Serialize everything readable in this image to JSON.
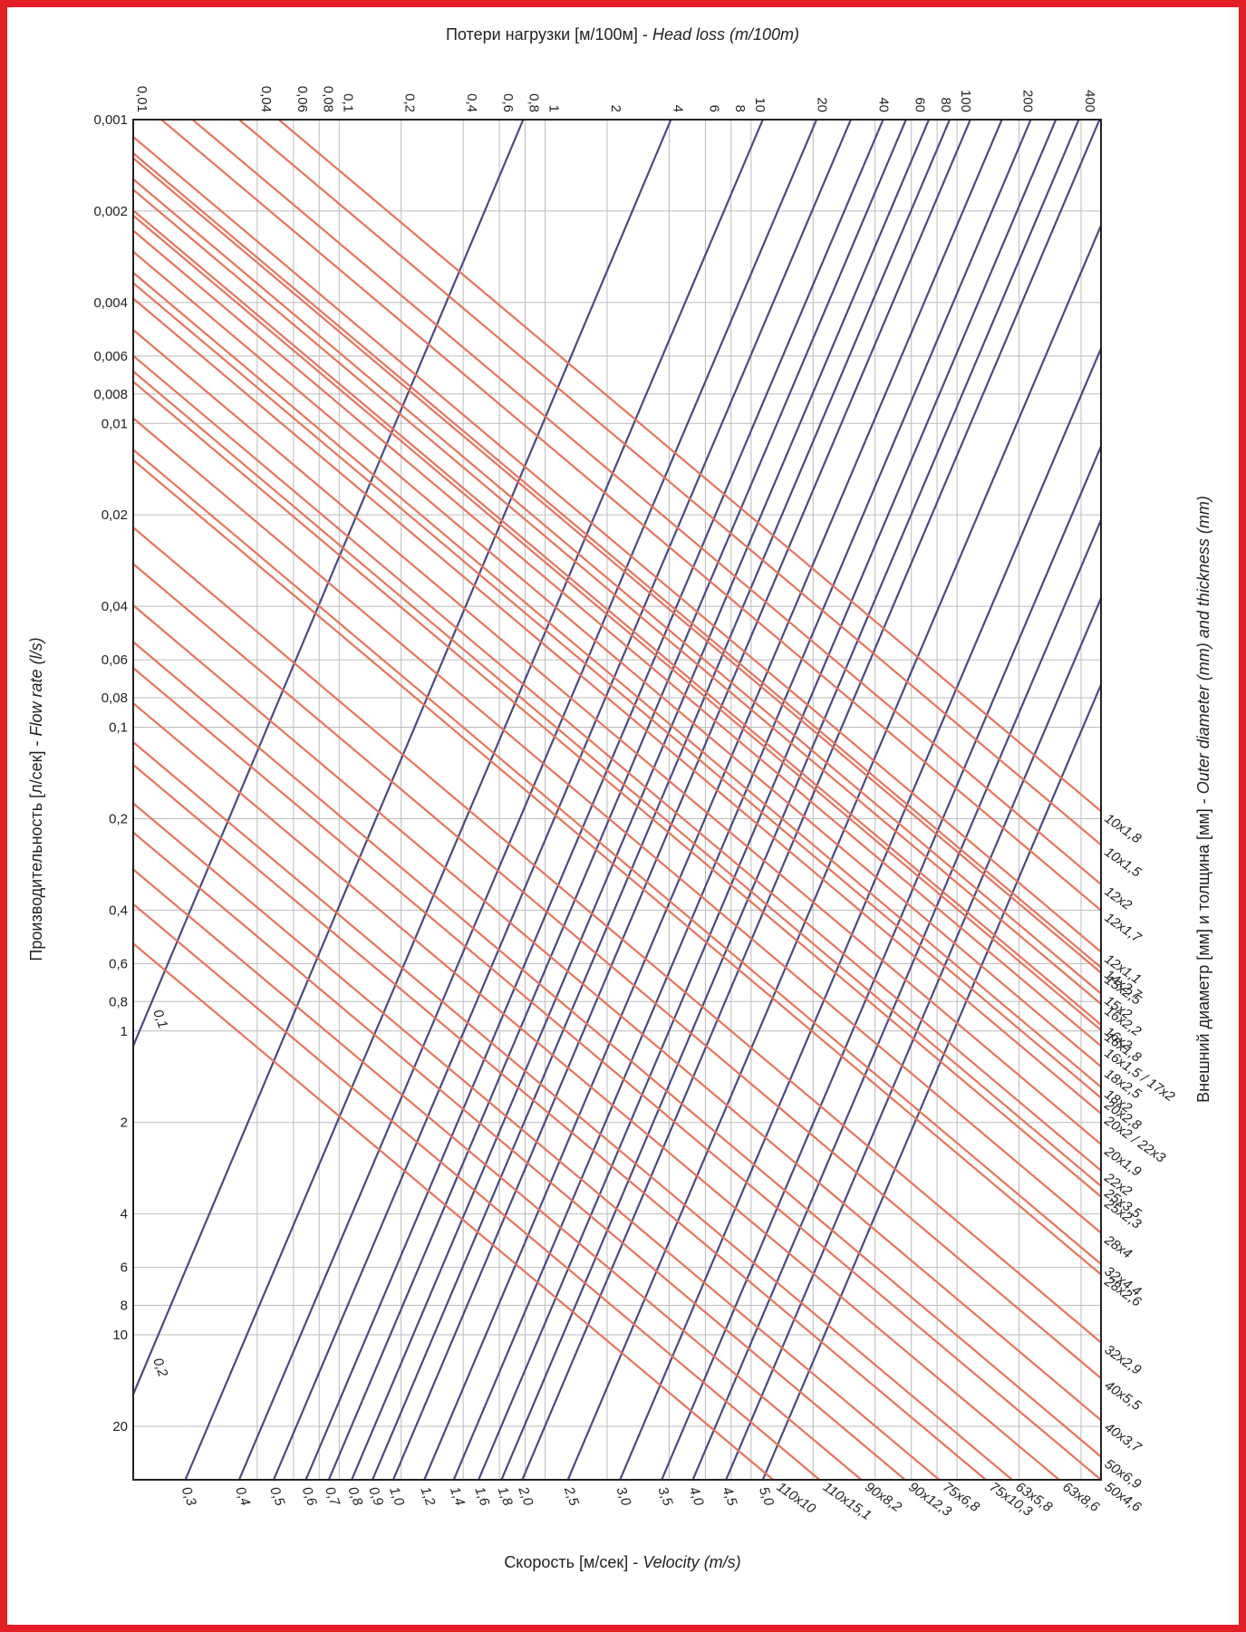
{
  "chart_data": {
    "type": "nomogram",
    "top_label": {
      "ru": "Потери нагрузки [м/100м] -",
      "en": "Head loss (m/100m)"
    },
    "left_label": {
      "ru": "Производительность [л/сек] -",
      "en": "Flow rate (l/s)"
    },
    "bottom_label": {
      "ru": "Скорость [м/сек] -",
      "en": "Velocity (m/s)"
    },
    "right_label": {
      "ru": "Внешний диаметр [мм] и толщина [мм] -",
      "en": "Outer diameter (mm) and thickness (mm)"
    },
    "xlim": [
      0.01,
      500
    ],
    "ylim": [
      0.001,
      30
    ],
    "xlog": true,
    "ylog": true,
    "y_reversed": true,
    "grid": true,
    "xticks": [
      {
        "value": 0.01,
        "label": "0,01"
      },
      {
        "value": 0.04,
        "label": "0,04"
      },
      {
        "value": 0.06,
        "label": "0,06"
      },
      {
        "value": 0.08,
        "label": "0,08"
      },
      {
        "value": 0.1,
        "label": "0,1"
      },
      {
        "value": 0.2,
        "label": "0,2"
      },
      {
        "value": 0.4,
        "label": "0,4"
      },
      {
        "value": 0.6,
        "label": "0,6"
      },
      {
        "value": 0.8,
        "label": "0,8"
      },
      1,
      2,
      4,
      6,
      8,
      10,
      20,
      40,
      60,
      80,
      100,
      200,
      400
    ],
    "yticks": [
      {
        "value": 0.001,
        "label": "0,001"
      },
      {
        "value": 0.002,
        "label": "0,002"
      },
      {
        "value": 0.004,
        "label": "0,004"
      },
      {
        "value": 0.006,
        "label": "0,006"
      },
      {
        "value": 0.008,
        "label": "0,008"
      },
      {
        "value": 0.01,
        "label": "0,01"
      },
      {
        "value": 0.02,
        "label": "0,02"
      },
      {
        "value": 0.04,
        "label": "0,04"
      },
      {
        "value": 0.06,
        "label": "0,06"
      },
      {
        "value": 0.08,
        "label": "0,08"
      },
      {
        "value": 0.1,
        "label": "0,1"
      },
      {
        "value": 0.2,
        "label": "0,2"
      },
      {
        "value": 0.4,
        "label": "0,4"
      },
      {
        "value": 0.6,
        "label": "0,6"
      },
      {
        "value": 0.8,
        "label": "0,8"
      },
      1,
      2,
      4,
      6,
      8,
      10,
      20
    ],
    "velocity_color": "#4b4a82",
    "velocity_lines": [
      {
        "label": "0,1",
        "x": [
          0.01,
          0.783
        ],
        "y": [
          1.12,
          0.001
        ]
      },
      {
        "label": "0,2",
        "x": [
          0.01,
          4.08
        ],
        "y": [
          15.7,
          0.001
        ]
      },
      {
        "label": "0,3",
        "x": [
          0.0179,
          11.4
        ],
        "y": [
          30,
          0.001
        ]
      },
      {
        "label": "0,4",
        "x": [
          0.0327,
          20.8
        ],
        "y": [
          30,
          0.001
        ]
      },
      {
        "label": "0,5",
        "x": [
          0.0481,
          30.5
        ],
        "y": [
          30,
          0.001
        ]
      },
      {
        "label": "0,6",
        "x": [
          0.0689,
          43.8
        ],
        "y": [
          30,
          0.001
        ]
      },
      {
        "label": "0,7",
        "x": [
          0.089,
          56.5
        ],
        "y": [
          30,
          0.001
        ]
      },
      {
        "label": "0,8",
        "x": [
          0.115,
          73
        ],
        "y": [
          30,
          0.001
        ]
      },
      {
        "label": "0,9",
        "x": [
          0.145,
          92.1
        ],
        "y": [
          30,
          0.001
        ]
      },
      {
        "label": "1,0",
        "x": [
          0.183,
          116
        ],
        "y": [
          30,
          0.001
        ]
      },
      {
        "label": "1,2",
        "x": [
          0.259,
          165
        ],
        "y": [
          30,
          0.001
        ]
      },
      {
        "label": "1,4",
        "x": [
          0.36,
          228
        ],
        "y": [
          30,
          0.001
        ]
      },
      {
        "label": "1,6",
        "x": [
          0.475,
          302
        ],
        "y": [
          30,
          0.001
        ]
      },
      {
        "label": "1,8",
        "x": [
          0.614,
          390
        ],
        "y": [
          30,
          0.001
        ]
      },
      {
        "label": "2,0",
        "x": [
          0.774,
          492
        ],
        "y": [
          30,
          0.001
        ]
      },
      {
        "label": "2,5",
        "x": [
          1.29,
          500
        ],
        "y": [
          30,
          0.00223
        ]
      },
      {
        "label": "3,0",
        "x": [
          2.31,
          500
        ],
        "y": [
          30,
          0.00567
        ]
      },
      {
        "label": "3,5",
        "x": [
          3.68,
          500
        ],
        "y": [
          30,
          0.0119
        ]
      },
      {
        "label": "4,0",
        "x": [
          5.21,
          500
        ],
        "y": [
          30,
          0.0208
        ]
      },
      {
        "label": "4,5",
        "x": [
          7.56,
          500
        ],
        "y": [
          30,
          0.0376
        ]
      },
      {
        "label": "5,0",
        "x": [
          11.4,
          500
        ],
        "y": [
          30,
          0.0724
        ]
      }
    ],
    "pipe_color": "#e8735a",
    "pipe_lines": [
      {
        "label": "10x1,8",
        "x": [
          0.0509,
          500
        ],
        "y": [
          0.001,
          0.189
        ]
      },
      {
        "label": "10x1,5",
        "x": [
          0.0327,
          500
        ],
        "y": [
          0.001,
          0.244
        ]
      },
      {
        "label": "12x2",
        "x": [
          0.0194,
          500
        ],
        "y": [
          0.001,
          0.329
        ]
      },
      {
        "label": "12x1,7",
        "x": [
          0.0137,
          500
        ],
        "y": [
          0.001,
          0.401
        ]
      },
      {
        "label": "12x1,1",
        "x": [
          0.01,
          500
        ],
        "y": [
          0.00114,
          0.549
        ]
      },
      {
        "label": "14x2,7",
        "x": [
          0.01,
          500
        ],
        "y": [
          0.00129,
          0.618
        ]
      },
      {
        "label": "15x2,5",
        "x": [
          0.01,
          500
        ],
        "y": [
          0.00134,
          0.643
        ]
      },
      {
        "label": "15x2",
        "x": [
          0.01,
          500
        ],
        "y": [
          0.00157,
          0.753
        ]
      },
      {
        "label": "16x2,2",
        "x": [
          0.01,
          500
        ],
        "y": [
          0.0017,
          0.815
        ]
      },
      {
        "label": "16x2",
        "x": [
          0.01,
          500
        ],
        "y": [
          0.00199,
          0.953
        ]
      },
      {
        "label": "16x1,8",
        "x": [
          0.01,
          500
        ],
        "y": [
          0.00207,
          0.993
        ]
      },
      {
        "label": "16x1,5 / 17x2",
        "x": [
          0.01,
          500
        ],
        "y": [
          0.00232,
          1.12
        ]
      },
      {
        "label": "18x2,5",
        "x": [
          0.01,
          500
        ],
        "y": [
          0.00272,
          1.31
        ]
      },
      {
        "label": "18x2",
        "x": [
          0.01,
          500
        ],
        "y": [
          0.00319,
          1.53
        ]
      },
      {
        "label": "20x2,8",
        "x": [
          0.01,
          500
        ],
        "y": [
          0.00345,
          1.66
        ]
      },
      {
        "label": "20x2 / 22x3",
        "x": [
          0.01,
          500
        ],
        "y": [
          0.00388,
          1.87
        ]
      },
      {
        "label": "20x1,9",
        "x": [
          0.01,
          500
        ],
        "y": [
          0.00492,
          2.36
        ]
      },
      {
        "label": "22x2",
        "x": [
          0.01,
          500
        ],
        "y": [
          0.00599,
          2.88
        ]
      },
      {
        "label": "25x3,5",
        "x": [
          0.01,
          500
        ],
        "y": [
          0.00674,
          3.24
        ]
      },
      {
        "label": "25x2,3",
        "x": [
          0.01,
          500
        ],
        "y": [
          0.00729,
          3.51
        ]
      },
      {
        "label": "28x4",
        "x": [
          0.01,
          500
        ],
        "y": [
          0.00961,
          4.62
        ]
      },
      {
        "label": "32x4,4",
        "x": [
          0.01,
          500
        ],
        "y": [
          0.0122,
          5.85
        ]
      },
      {
        "label": "28x2,6",
        "x": [
          0.01,
          500
        ],
        "y": [
          0.0132,
          6.33
        ]
      },
      {
        "label": "32x2,9",
        "x": [
          0.01,
          500
        ],
        "y": [
          0.022,
          10.6
        ]
      },
      {
        "label": "40x5,5",
        "x": [
          0.01,
          500
        ],
        "y": [
          0.029,
          13.9
        ]
      },
      {
        "label": "40x3,7",
        "x": [
          0.01,
          500
        ],
        "y": [
          0.0397,
          19.1
        ]
      },
      {
        "label": "50x6,9",
        "x": [
          0.01,
          500
        ],
        "y": [
          0.0524,
          25.2
        ]
      },
      {
        "label": "50x4,6",
        "x": [
          0.01,
          500
        ],
        "y": [
          0.0638,
          30
        ]
      },
      {
        "label": "110x10",
        "x": [
          0.01,
          12.8
        ],
        "y": [
          0.515,
          30
        ]
      },
      {
        "label": "110x15,1",
        "x": [
          0.01,
          21.5
        ],
        "y": [
          0.382,
          30
        ]
      },
      {
        "label": "90x8,2",
        "x": [
          0.01,
          34.3
        ],
        "y": [
          0.294,
          30
        ]
      },
      {
        "label": "90x12,3",
        "x": [
          0.01,
          55.9
        ],
        "y": [
          0.222,
          30
        ]
      },
      {
        "label": "75x6,8",
        "x": [
          0.01,
          82
        ],
        "y": [
          0.178,
          30
        ]
      },
      {
        "label": "75x10,3",
        "x": [
          0.01,
          138
        ],
        "y": [
          0.133,
          30
        ]
      },
      {
        "label": "63x5,8",
        "x": [
          0.01,
          185
        ],
        "y": [
          0.112,
          30
        ]
      },
      {
        "label": "63x8,6",
        "x": [
          0.01,
          313
        ],
        "y": [
          0.0834,
          30
        ]
      }
    ]
  }
}
